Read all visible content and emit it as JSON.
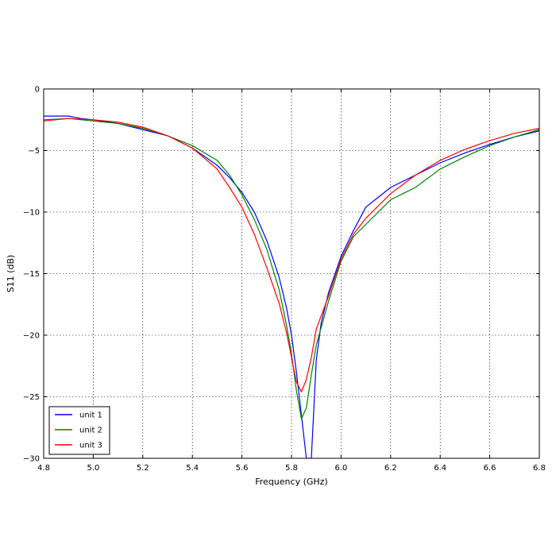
{
  "chart_data": {
    "type": "line",
    "title": "",
    "xlabel": "Frequency (GHz)",
    "ylabel": "S11 (dB)",
    "xlim": [
      4.8,
      6.8
    ],
    "ylim": [
      -30,
      0
    ],
    "xticks": [
      "4.8",
      "5.0",
      "5.2",
      "5.4",
      "5.6",
      "5.8",
      "6.0",
      "6.2",
      "6.4",
      "6.6",
      "6.8"
    ],
    "yticks": [
      "0",
      "−5",
      "−10",
      "−15",
      "−20",
      "−25",
      "−30"
    ],
    "grid": true,
    "legend_position": "lower-left",
    "series": [
      {
        "name": "unit 1",
        "color": "#0000ff",
        "points": [
          [
            4.8,
            -2.2
          ],
          [
            4.85,
            -2.2
          ],
          [
            4.9,
            -2.2
          ],
          [
            4.95,
            -2.4
          ],
          [
            5.0,
            -2.5
          ],
          [
            5.1,
            -2.8
          ],
          [
            5.2,
            -3.3
          ],
          [
            5.3,
            -3.8
          ],
          [
            5.4,
            -4.8
          ],
          [
            5.5,
            -6.2
          ],
          [
            5.55,
            -7.2
          ],
          [
            5.6,
            -8.4
          ],
          [
            5.65,
            -10.0
          ],
          [
            5.7,
            -12.3
          ],
          [
            5.75,
            -15.3
          ],
          [
            5.78,
            -17.8
          ],
          [
            5.8,
            -20.0
          ],
          [
            5.82,
            -23.0
          ],
          [
            5.84,
            -26.5
          ],
          [
            5.86,
            -30.0
          ],
          [
            5.88,
            -30.0
          ],
          [
            5.9,
            -22.0
          ],
          [
            5.92,
            -19.0
          ],
          [
            5.95,
            -16.5
          ],
          [
            6.0,
            -13.6
          ],
          [
            6.05,
            -11.5
          ],
          [
            6.1,
            -9.6
          ],
          [
            6.15,
            -8.8
          ],
          [
            6.2,
            -8.0
          ],
          [
            6.3,
            -7.0
          ],
          [
            6.4,
            -6.0
          ],
          [
            6.5,
            -5.2
          ],
          [
            6.6,
            -4.5
          ],
          [
            6.7,
            -3.9
          ],
          [
            6.8,
            -3.4
          ]
        ]
      },
      {
        "name": "unit 2",
        "color": "#008000",
        "points": [
          [
            4.8,
            -2.5
          ],
          [
            4.9,
            -2.4
          ],
          [
            5.0,
            -2.6
          ],
          [
            5.1,
            -2.8
          ],
          [
            5.2,
            -3.2
          ],
          [
            5.3,
            -3.8
          ],
          [
            5.4,
            -4.6
          ],
          [
            5.5,
            -5.8
          ],
          [
            5.55,
            -7.0
          ],
          [
            5.6,
            -8.6
          ],
          [
            5.65,
            -10.6
          ],
          [
            5.7,
            -13.0
          ],
          [
            5.75,
            -16.3
          ],
          [
            5.78,
            -19.2
          ],
          [
            5.8,
            -21.5
          ],
          [
            5.82,
            -24.5
          ],
          [
            5.84,
            -26.8
          ],
          [
            5.86,
            -25.9
          ],
          [
            5.88,
            -23.2
          ],
          [
            5.9,
            -20.8
          ],
          [
            5.95,
            -17.2
          ],
          [
            6.0,
            -14.0
          ],
          [
            6.05,
            -12.0
          ],
          [
            6.1,
            -11.0
          ],
          [
            6.2,
            -9.0
          ],
          [
            6.3,
            -8.0
          ],
          [
            6.4,
            -6.5
          ],
          [
            6.5,
            -5.5
          ],
          [
            6.6,
            -4.6
          ],
          [
            6.7,
            -3.9
          ],
          [
            6.8,
            -3.3
          ]
        ]
      },
      {
        "name": "unit 3",
        "color": "#ff0000",
        "points": [
          [
            4.8,
            -2.6
          ],
          [
            4.9,
            -2.4
          ],
          [
            5.0,
            -2.5
          ],
          [
            5.1,
            -2.7
          ],
          [
            5.2,
            -3.1
          ],
          [
            5.3,
            -3.8
          ],
          [
            5.4,
            -4.8
          ],
          [
            5.5,
            -6.5
          ],
          [
            5.55,
            -8.0
          ],
          [
            5.6,
            -9.6
          ],
          [
            5.65,
            -11.8
          ],
          [
            5.7,
            -14.5
          ],
          [
            5.75,
            -17.4
          ],
          [
            5.78,
            -19.8
          ],
          [
            5.8,
            -21.8
          ],
          [
            5.82,
            -23.8
          ],
          [
            5.84,
            -24.6
          ],
          [
            5.86,
            -23.6
          ],
          [
            5.88,
            -21.8
          ],
          [
            5.9,
            -19.5
          ],
          [
            5.95,
            -16.8
          ],
          [
            6.0,
            -13.8
          ],
          [
            6.05,
            -11.8
          ],
          [
            6.1,
            -10.5
          ],
          [
            6.2,
            -8.5
          ],
          [
            6.3,
            -7.0
          ],
          [
            6.4,
            -5.8
          ],
          [
            6.5,
            -4.9
          ],
          [
            6.6,
            -4.2
          ],
          [
            6.7,
            -3.6
          ],
          [
            6.8,
            -3.2
          ]
        ]
      }
    ]
  }
}
